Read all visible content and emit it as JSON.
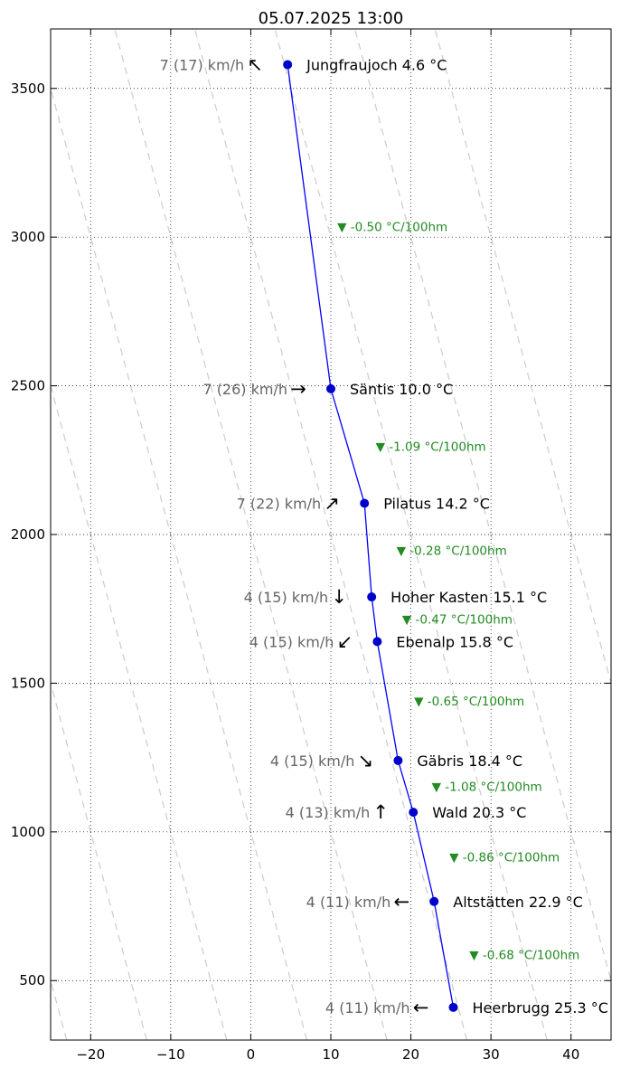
{
  "chart_data": {
    "type": "line",
    "title": "05.07.2025 13:00",
    "xlabel": "",
    "ylabel": "",
    "xlim": [
      -25,
      45
    ],
    "ylim": [
      300,
      3700
    ],
    "xticks": [
      -20,
      -10,
      0,
      10,
      20,
      30,
      40
    ],
    "yticks": [
      500,
      1000,
      1500,
      2000,
      2500,
      3000,
      3500
    ],
    "grid": true,
    "line_color": "#0000ff",
    "marker_color": "#0000cc",
    "wind_color": "#666666",
    "lapse_color": "#228b22",
    "reference_line_color": "#cccccc",
    "reference_lines_x_at_bottom": [
      -43,
      -33,
      -23,
      -13,
      -3,
      7,
      17,
      27,
      37,
      47,
      57
    ],
    "reference_lapse_per_100m": -1.0,
    "stations": [
      {
        "name": "Jungfraujoch",
        "altitude": 3580,
        "temp": 4.6,
        "label": "Jungfraujoch 4.6 °C",
        "wind": "7 (17) km/h",
        "arrow": "↖"
      },
      {
        "name": "Säntis",
        "altitude": 2490,
        "temp": 10.0,
        "label": "Säntis 10.0 °C",
        "wind": "7 (26) km/h",
        "arrow": "→"
      },
      {
        "name": "Pilatus",
        "altitude": 2105,
        "temp": 14.2,
        "label": "Pilatus 14.2 °C",
        "wind": "7 (22) km/h",
        "arrow": "↗"
      },
      {
        "name": "Hoher Kasten",
        "altitude": 1790,
        "temp": 15.1,
        "label": "Hoher Kasten 15.1 °C",
        "wind": "4 (15) km/h",
        "arrow": "↓"
      },
      {
        "name": "Ebenalp",
        "altitude": 1640,
        "temp": 15.8,
        "label": "Ebenalp 15.8 °C",
        "wind": "4 (15) km/h",
        "arrow": "↙"
      },
      {
        "name": "Gäbris",
        "altitude": 1240,
        "temp": 18.4,
        "label": "Gäbris 18.4 °C",
        "wind": "4 (15) km/h",
        "arrow": "↘"
      },
      {
        "name": "Wald",
        "altitude": 1066,
        "temp": 20.3,
        "label": "Wald 20.3 °C",
        "wind": "4 (13) km/h",
        "arrow": "↑"
      },
      {
        "name": "Altstätten",
        "altitude": 766,
        "temp": 22.9,
        "label": "Altstätten 22.9 °C",
        "wind": "4 (11) km/h",
        "arrow": "←"
      },
      {
        "name": "Heerbrugg",
        "altitude": 410,
        "temp": 25.3,
        "label": "Heerbrugg 25.3 °C",
        "wind": "4 (11) km/h",
        "arrow": "←"
      }
    ],
    "lapse_rates": [
      {
        "text": "▼ -0.50 °C/100hm",
        "x": 10.8,
        "y": 3035
      },
      {
        "text": "▼ -1.09 °C/100hm",
        "x": 15.6,
        "y": 2297
      },
      {
        "text": "▼ -0.28 °C/100hm",
        "x": 18.2,
        "y": 1947
      },
      {
        "text": "▼ -0.47 °C/100hm",
        "x": 18.9,
        "y": 1715
      },
      {
        "text": "▼ -0.65 °C/100hm",
        "x": 20.4,
        "y": 1440
      },
      {
        "text": "▼ -1.08 °C/100hm",
        "x": 22.6,
        "y": 1153
      },
      {
        "text": "▼ -0.86 °C/100hm",
        "x": 24.8,
        "y": 916
      },
      {
        "text": "▼ -0.68 °C/100hm",
        "x": 27.3,
        "y": 588
      }
    ]
  }
}
